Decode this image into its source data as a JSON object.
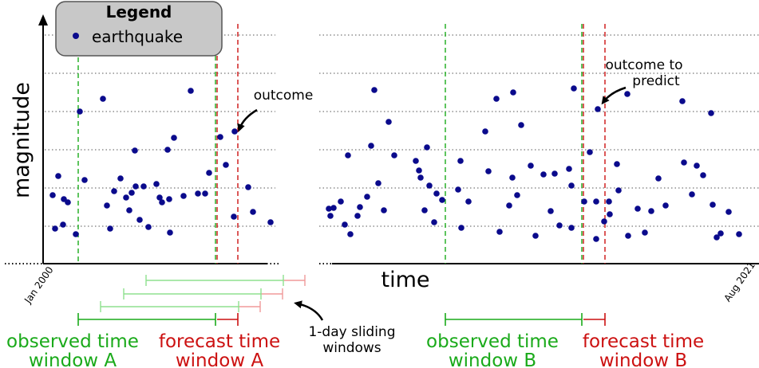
{
  "legend": {
    "title": "Legend",
    "entry": "earthquake"
  },
  "axes": {
    "ylabel": "magnitude",
    "xlabel": "time",
    "x_start_tick": "Jan 2000",
    "x_end_tick": "Aug 2021"
  },
  "annotations": {
    "outcome": "outcome",
    "outcome_to_predict_line1": "outcome to",
    "outcome_to_predict_line2": "predict",
    "sliding_line1": "1-day sliding",
    "sliding_line2": "windows"
  },
  "windows": {
    "observed_a": [
      "observed time",
      "window A"
    ],
    "forecast_a": [
      "forecast time",
      "window A"
    ],
    "observed_b": [
      "observed time",
      "window B"
    ],
    "forecast_b": [
      "forecast time",
      "window B"
    ]
  },
  "colors": {
    "point": "#0a0a8c",
    "observed": "#1aaa1a",
    "forecast": "#cc1111",
    "light_green": "#8fe08f",
    "light_red": "#f09a9a"
  },
  "earthquakes_left": [
    [
      66,
      245
    ],
    [
      73,
      221
    ],
    [
      69,
      287
    ],
    [
      80,
      250
    ],
    [
      79,
      282
    ],
    [
      85,
      254
    ],
    [
      95,
      294
    ],
    [
      100,
      140
    ],
    [
      106,
      226
    ],
    [
      129,
      124
    ],
    [
      134,
      258
    ],
    [
      138,
      287
    ],
    [
      143,
      240
    ],
    [
      151,
      224
    ],
    [
      158,
      248
    ],
    [
      162,
      264
    ],
    [
      165,
      242
    ],
    [
      169,
      189
    ],
    [
      170,
      234
    ],
    [
      175,
      276
    ],
    [
      180,
      234
    ],
    [
      186,
      285
    ],
    [
      196,
      231
    ],
    [
      200,
      248
    ],
    [
      203,
      254
    ],
    [
      210,
      188
    ],
    [
      212,
      250
    ],
    [
      213,
      292
    ],
    [
      218,
      173
    ],
    [
      230,
      246
    ],
    [
      239,
      114
    ],
    [
      248,
      243
    ],
    [
      257,
      243
    ],
    [
      262,
      217
    ],
    [
      276,
      172
    ],
    [
      283,
      207
    ],
    [
      293,
      272
    ],
    [
      294,
      165
    ],
    [
      311,
      235
    ],
    [
      317,
      266
    ],
    [
      339,
      279
    ]
  ],
  "earthquakes_right": [
    [
      412,
      262
    ],
    [
      414,
      271
    ],
    [
      418,
      261
    ],
    [
      427,
      253
    ],
    [
      432,
      282
    ],
    [
      436,
      195
    ],
    [
      439,
      294
    ],
    [
      448,
      271
    ],
    [
      451,
      260
    ],
    [
      460,
      247
    ],
    [
      465,
      183
    ],
    [
      469,
      113
    ],
    [
      474,
      230
    ],
    [
      481,
      264
    ],
    [
      487,
      153
    ],
    [
      494,
      195
    ],
    [
      521,
      202
    ],
    [
      525,
      214
    ],
    [
      527,
      223
    ],
    [
      532,
      264
    ],
    [
      535,
      185
    ],
    [
      538,
      233
    ],
    [
      544,
      279
    ],
    [
      547,
      243
    ],
    [
      554,
      251
    ],
    [
      574,
      238
    ],
    [
      577,
      202
    ],
    [
      578,
      286
    ],
    [
      587,
      253
    ],
    [
      608,
      165
    ],
    [
      612,
      215
    ],
    [
      622,
      124
    ],
    [
      626,
      291
    ],
    [
      638,
      258
    ],
    [
      643,
      116
    ],
    [
      642,
      223
    ],
    [
      648,
      245
    ],
    [
      653,
      157
    ],
    [
      665,
      208
    ],
    [
      671,
      296
    ],
    [
      681,
      219
    ],
    [
      690,
      265
    ],
    [
      695,
      218
    ],
    [
      701,
      283
    ],
    [
      713,
      212
    ],
    [
      716,
      233
    ],
    [
      716,
      286
    ],
    [
      719,
      111
    ],
    [
      732,
      253
    ],
    [
      739,
      191
    ],
    [
      747,
      300
    ],
    [
      747,
      253
    ],
    [
      749,
      137
    ],
    [
      757,
      278
    ],
    [
      763,
      253
    ],
    [
      764,
      269
    ],
    [
      773,
      206
    ],
    [
      775,
      239
    ],
    [
      786,
      118
    ],
    [
      787,
      296
    ],
    [
      799,
      262
    ],
    [
      808,
      292
    ],
    [
      816,
      265
    ],
    [
      825,
      224
    ],
    [
      834,
      258
    ],
    [
      855,
      127
    ],
    [
      857,
      204
    ],
    [
      867,
      244
    ],
    [
      873,
      208
    ],
    [
      881,
      220
    ],
    [
      891,
      142
    ],
    [
      893,
      257
    ],
    [
      898,
      298
    ],
    [
      903,
      293
    ],
    [
      913,
      266
    ],
    [
      926,
      294
    ]
  ]
}
